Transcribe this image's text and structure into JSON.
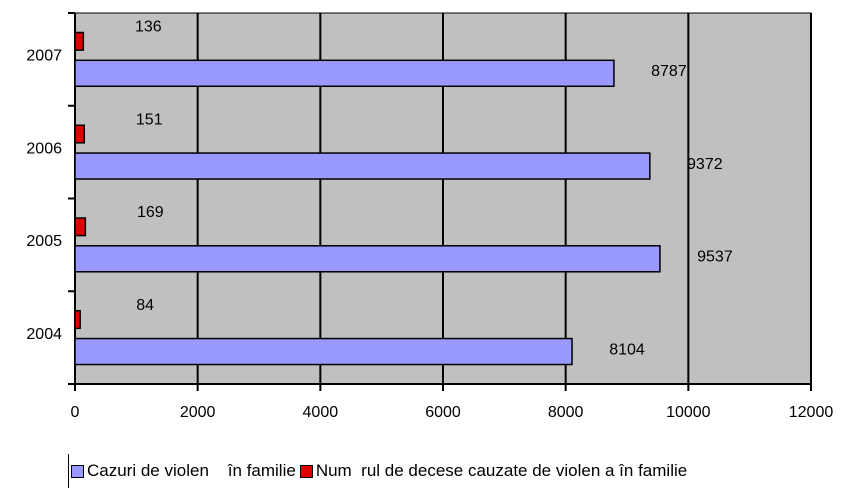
{
  "chart_data": {
    "type": "bar",
    "orientation": "horizontal",
    "categories": [
      "2004",
      "2005",
      "2006",
      "2007"
    ],
    "series": [
      {
        "name": "Cazuri de violen    în familie",
        "values": [
          8104,
          9537,
          9372,
          8787
        ],
        "color": "#9999ff"
      },
      {
        "name": "Num  rul de decese cauzate de violen a în familie",
        "values": [
          84,
          169,
          151,
          136
        ],
        "color": "#e00000"
      }
    ],
    "xlim": [
      0,
      12000
    ],
    "xticks": [
      "0",
      "2000",
      "4000",
      "6000",
      "8000",
      "10000",
      "12000"
    ],
    "plot_background": "#c0c0c0",
    "grid": "vertical",
    "legend_position": "bottom"
  }
}
